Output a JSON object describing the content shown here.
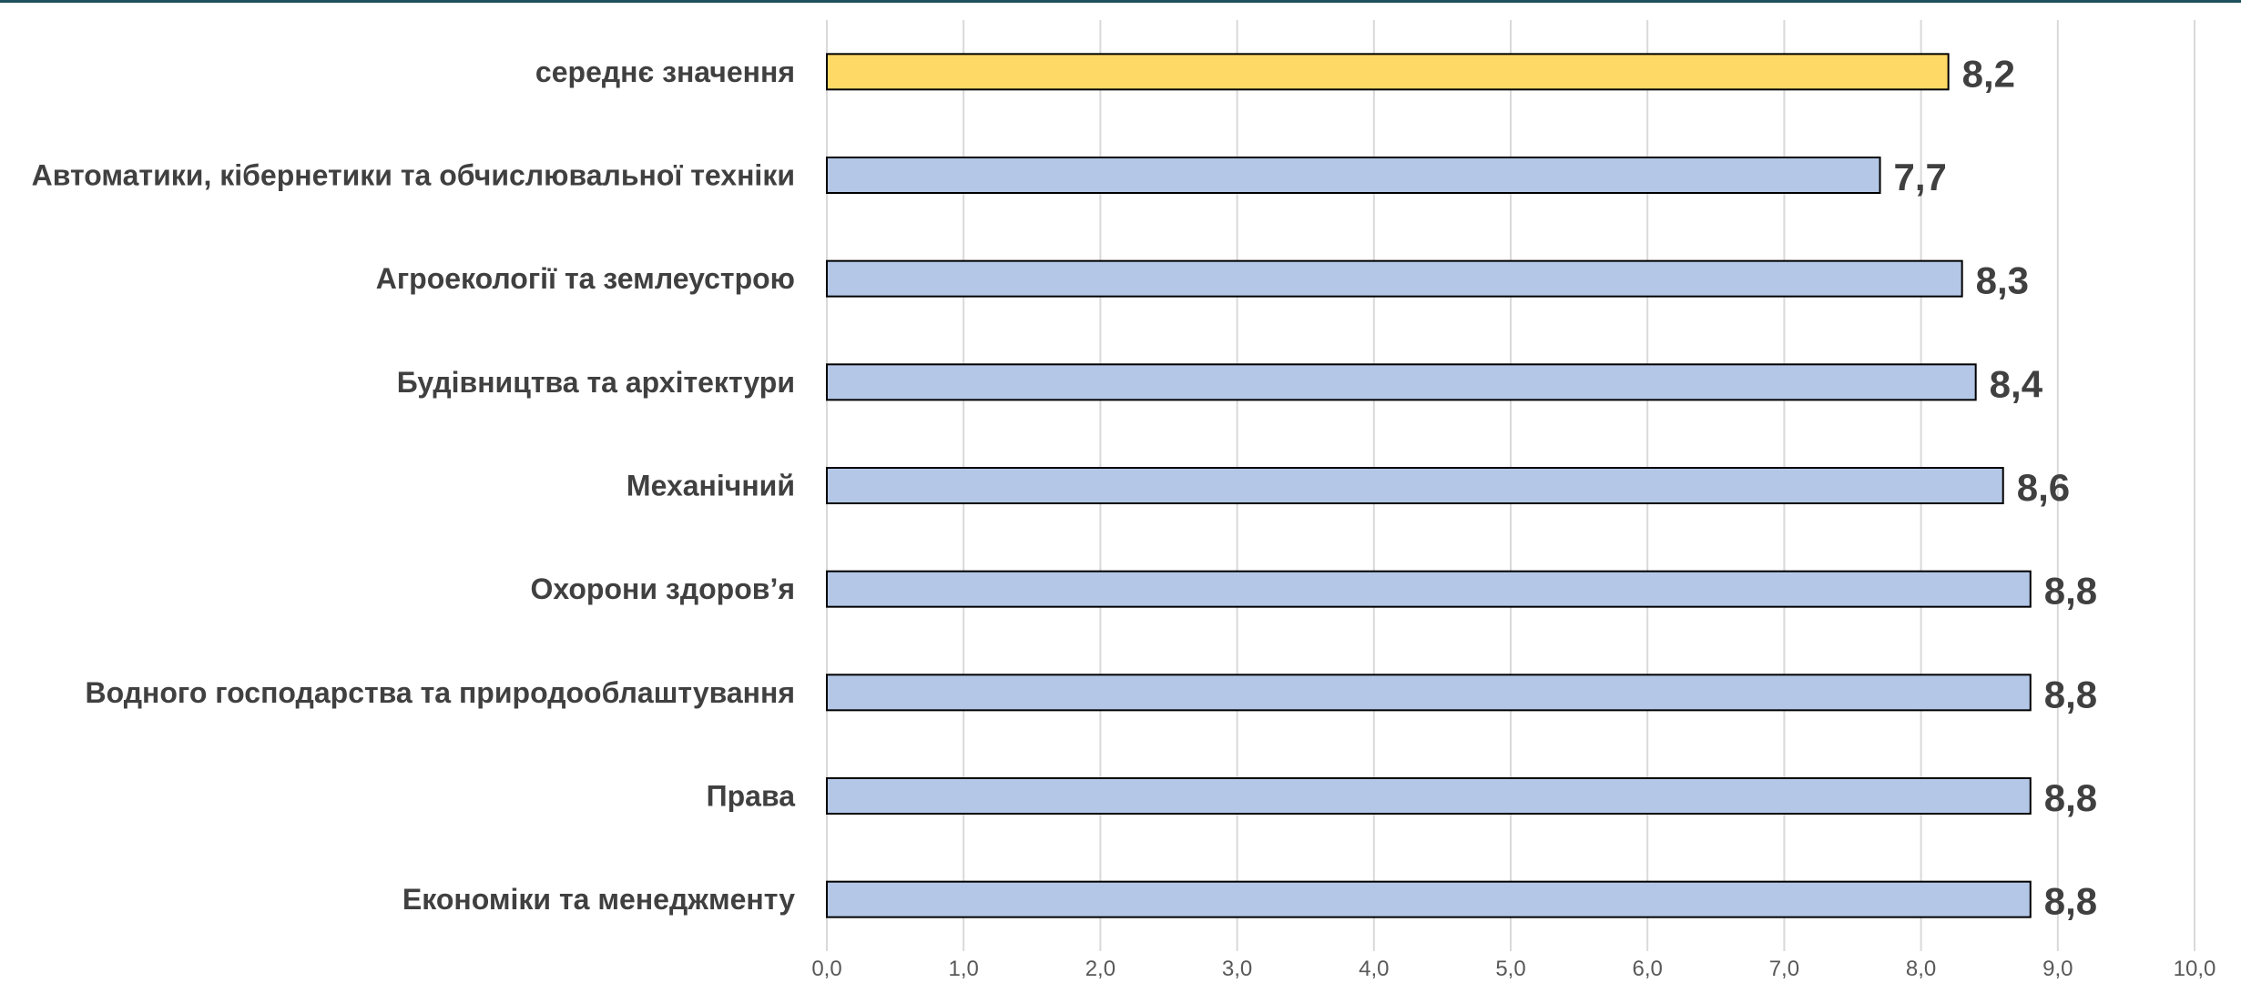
{
  "chart_data": {
    "type": "bar",
    "orientation": "horizontal",
    "categories": [
      "середнє значення",
      "Автоматики, кібернетики та обчислювальної техніки",
      "Агроекології та землеустрою",
      "Будівництва та архітектури",
      "Механічний",
      "Охорони здоров’я",
      "Водного господарства та природооблаштування",
      "Права",
      "Економіки та менеджменту"
    ],
    "values": [
      8.2,
      7.7,
      8.3,
      8.4,
      8.6,
      8.8,
      8.8,
      8.8,
      8.8
    ],
    "value_labels": [
      "8,2",
      "7,7",
      "8,3",
      "8,4",
      "8,6",
      "8,8",
      "8,8",
      "8,8",
      "8,8"
    ],
    "x_ticks": [
      "0,0",
      "1,0",
      "2,0",
      "3,0",
      "4,0",
      "5,0",
      "6,0",
      "7,0",
      "8,0",
      "9,0",
      "10,0"
    ],
    "xlim": [
      0,
      10
    ],
    "title": "",
    "xlabel": "",
    "ylabel": "",
    "grid": "vertical",
    "legend": "none",
    "colors": {
      "highlight_bar": "#ffd966",
      "bar": "#b4c7e7",
      "bar_border": "#000000",
      "grid": "#d9d9d9",
      "text": "#404040",
      "top_bar": "#1e4f5c"
    }
  }
}
